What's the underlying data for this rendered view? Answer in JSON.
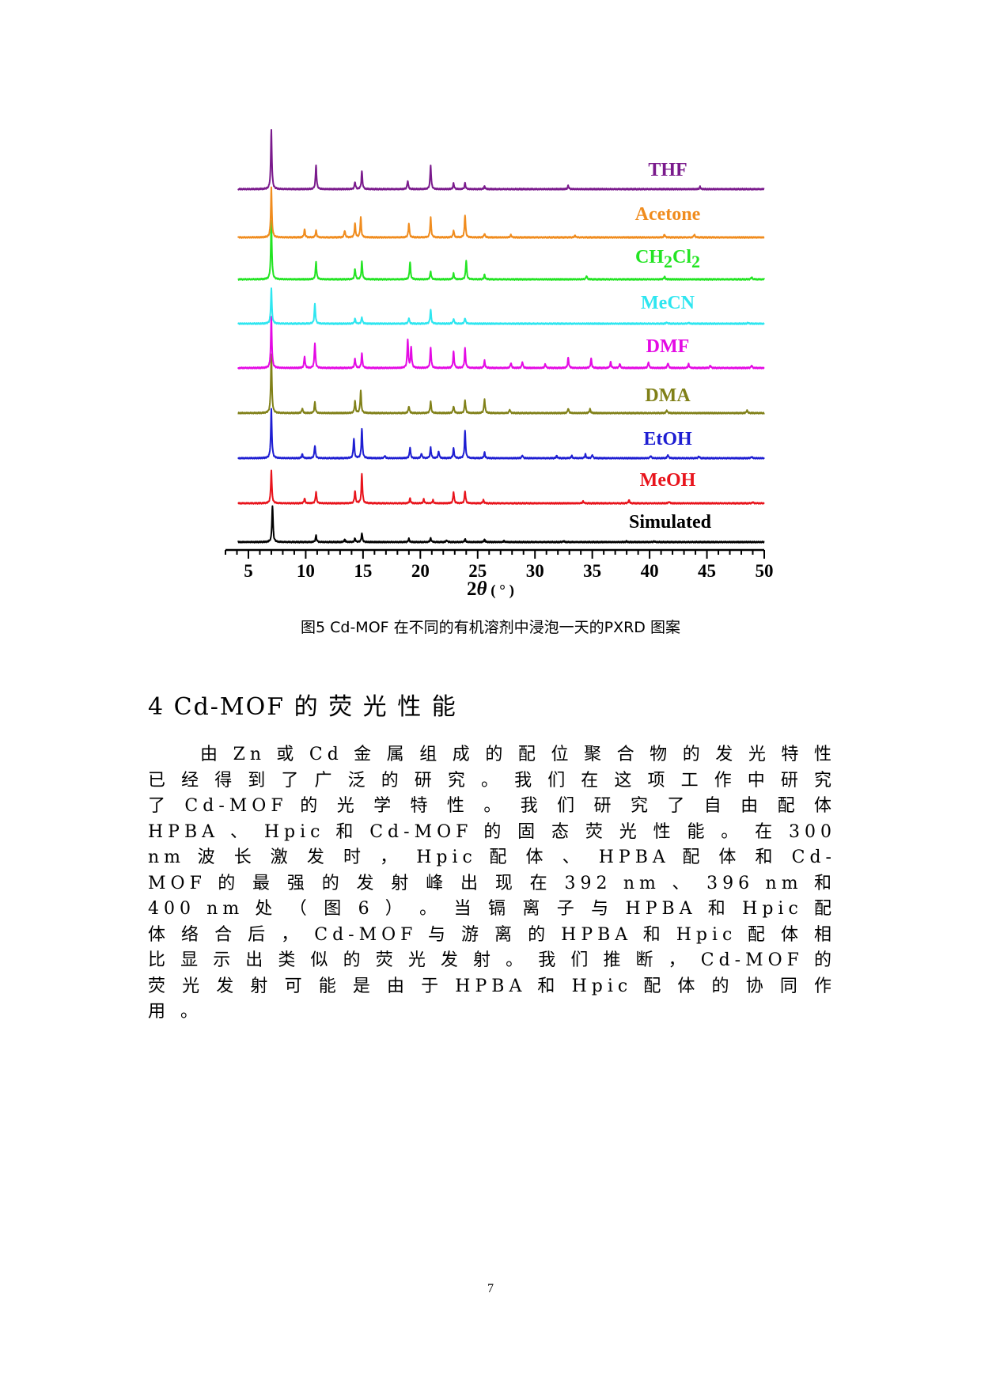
{
  "chart_data": {
    "type": "line",
    "title": "",
    "xlabel": "2θ (°)",
    "xlabel_theta": "θ",
    "xlabel_prefix": "2",
    "xlabel_unit": " ( ° )",
    "xlim": [
      3,
      50
    ],
    "xticks": [
      5,
      10,
      15,
      20,
      25,
      30,
      35,
      40,
      45,
      50
    ],
    "ylabel": "",
    "stacked_offset": true,
    "series": [
      {
        "name": "Simulated",
        "label": "Simulated",
        "color": "#000000",
        "peaks": [
          [
            7.1,
            100
          ],
          [
            10.9,
            18
          ],
          [
            13.4,
            7
          ],
          [
            14.3,
            10
          ],
          [
            14.9,
            24
          ],
          [
            19.0,
            9
          ],
          [
            20.9,
            11
          ],
          [
            22.3,
            5
          ],
          [
            23.9,
            8
          ],
          [
            25.6,
            7
          ],
          [
            27.3,
            3
          ],
          [
            32.5,
            3
          ],
          [
            38.0,
            2
          ],
          [
            40.4,
            2
          ]
        ]
      },
      {
        "name": "MeOH",
        "label": "MeOH",
        "color": "#E8141C",
        "peaks": [
          [
            7.0,
            80
          ],
          [
            9.9,
            12
          ],
          [
            10.9,
            28
          ],
          [
            14.3,
            30
          ],
          [
            14.9,
            72
          ],
          [
            19.1,
            12
          ],
          [
            20.3,
            10
          ],
          [
            21.1,
            8
          ],
          [
            22.9,
            28
          ],
          [
            23.9,
            30
          ],
          [
            25.5,
            8
          ],
          [
            34.2,
            5
          ],
          [
            38.2,
            8
          ],
          [
            41.7,
            4
          ],
          [
            49.0,
            3
          ]
        ]
      },
      {
        "name": "EtOH",
        "label": "EtOH",
        "color": "#1E1ED2",
        "peaks": [
          [
            7.0,
            100
          ],
          [
            9.7,
            8
          ],
          [
            10.8,
            26
          ],
          [
            14.2,
            40
          ],
          [
            14.9,
            60
          ],
          [
            16.9,
            5
          ],
          [
            19.1,
            22
          ],
          [
            20.1,
            10
          ],
          [
            20.9,
            22
          ],
          [
            21.6,
            14
          ],
          [
            22.9,
            20
          ],
          [
            23.9,
            55
          ],
          [
            25.6,
            12
          ],
          [
            28.9,
            6
          ],
          [
            31.9,
            5
          ],
          [
            33.2,
            5
          ],
          [
            34.4,
            8
          ],
          [
            35.0,
            7
          ],
          [
            40.1,
            5
          ],
          [
            41.6,
            7
          ],
          [
            44.3,
            4
          ],
          [
            48.9,
            3
          ]
        ]
      },
      {
        "name": "DMA",
        "label": "DMA",
        "color": "#808018",
        "peaks": [
          [
            7.0,
            100
          ],
          [
            9.7,
            8
          ],
          [
            10.8,
            18
          ],
          [
            14.3,
            20
          ],
          [
            14.8,
            38
          ],
          [
            19.0,
            12
          ],
          [
            20.9,
            20
          ],
          [
            22.9,
            12
          ],
          [
            23.9,
            22
          ],
          [
            25.6,
            24
          ],
          [
            27.8,
            6
          ],
          [
            32.9,
            8
          ],
          [
            34.8,
            7
          ],
          [
            41.5,
            5
          ],
          [
            48.5,
            5
          ]
        ]
      },
      {
        "name": "DMF",
        "label": "DMF",
        "color": "#E40AE4",
        "peaks": [
          [
            7.0,
            100
          ],
          [
            9.9,
            22
          ],
          [
            10.8,
            48
          ],
          [
            14.3,
            18
          ],
          [
            14.9,
            28
          ],
          [
            18.9,
            55
          ],
          [
            19.2,
            40
          ],
          [
            20.9,
            40
          ],
          [
            22.9,
            32
          ],
          [
            23.9,
            38
          ],
          [
            25.6,
            14
          ],
          [
            27.9,
            10
          ],
          [
            28.9,
            12
          ],
          [
            30.9,
            8
          ],
          [
            32.9,
            20
          ],
          [
            34.9,
            18
          ],
          [
            36.6,
            12
          ],
          [
            37.4,
            8
          ],
          [
            39.9,
            12
          ],
          [
            41.6,
            10
          ],
          [
            43.4,
            8
          ],
          [
            45.3,
            5
          ],
          [
            48.9,
            5
          ]
        ]
      },
      {
        "name": "MeCN",
        "label": "MeCN",
        "color": "#2EE6F0",
        "peaks": [
          [
            7.0,
            100
          ],
          [
            10.8,
            55
          ],
          [
            14.3,
            14
          ],
          [
            14.9,
            18
          ],
          [
            19.0,
            16
          ],
          [
            20.9,
            40
          ],
          [
            22.9,
            14
          ],
          [
            23.9,
            16
          ],
          [
            41.5,
            4
          ],
          [
            43.4,
            3
          ],
          [
            48.6,
            3
          ]
        ]
      },
      {
        "name": "CH2Cl2",
        "label": "CH2Cl2",
        "color": "#23E423",
        "peaks": [
          [
            7.0,
            100
          ],
          [
            10.9,
            30
          ],
          [
            14.3,
            18
          ],
          [
            14.9,
            30
          ],
          [
            19.1,
            30
          ],
          [
            20.9,
            14
          ],
          [
            22.9,
            10
          ],
          [
            24.0,
            32
          ],
          [
            25.6,
            8
          ],
          [
            34.5,
            6
          ],
          [
            41.3,
            5
          ],
          [
            48.9,
            4
          ]
        ]
      },
      {
        "name": "Acetone",
        "label": "Acetone",
        "color": "#F08C1E",
        "peaks": [
          [
            7.0,
            100
          ],
          [
            9.9,
            16
          ],
          [
            10.9,
            14
          ],
          [
            13.4,
            14
          ],
          [
            14.3,
            28
          ],
          [
            14.8,
            40
          ],
          [
            19.0,
            28
          ],
          [
            20.9,
            40
          ],
          [
            22.9,
            14
          ],
          [
            23.9,
            45
          ],
          [
            25.6,
            8
          ],
          [
            27.9,
            5
          ],
          [
            33.5,
            4
          ],
          [
            41.3,
            6
          ],
          [
            43.9,
            6
          ]
        ]
      },
      {
        "name": "THF",
        "label": "THF",
        "color": "#7A1A8C",
        "peaks": [
          [
            7.0,
            100
          ],
          [
            10.9,
            40
          ],
          [
            14.3,
            12
          ],
          [
            14.9,
            30
          ],
          [
            18.9,
            14
          ],
          [
            20.9,
            40
          ],
          [
            22.9,
            10
          ],
          [
            23.9,
            10
          ],
          [
            25.6,
            5
          ],
          [
            32.9,
            6
          ],
          [
            44.4,
            4
          ]
        ]
      }
    ]
  },
  "caption": "图5 Cd-MOF  在不同的有机溶剂中浸泡一天的PXRD 图案",
  "heading": "4 Cd-MOF 的 荧 光 性 能",
  "paragraph": "由 Zn 或 Cd 金 属 组 成 的 配 位 聚 合 物 的 发 光 特 性 已 经 得 到 了 广 泛 的 研 究 。 我 们 在 这 项 工 作 中 研 究 了 Cd-MOF 的 光 学 特 性 。 我 们 研 究 了 自 由 配 体 HPBA 、 Hpic 和 Cd-MOF 的 固 态 荧 光 性 能 。 在 300 nm 波 长 激 发 时 ， Hpic 配 体 、 HPBA 配 体 和 Cd-MOF 的 最 强 的 发 射 峰 出 现 在 392 nm 、 396 nm 和 400 nm 处 （ 图 6 ） 。 当 镉 离 子 与 HPBA 和 Hpic 配 体 络 合 后 ， Cd-MOF 与 游 离 的 HPBA 和 Hpic 配 体 相 比 显 示 出 类 似 的 荧 光 发 射 。 我 们 推 断 ， Cd-MOF 的 荧 光 发 射 可 能 是 由 于 HPBA 和 Hpic 配 体 的 协 同 作 用 。",
  "page_number": "7"
}
